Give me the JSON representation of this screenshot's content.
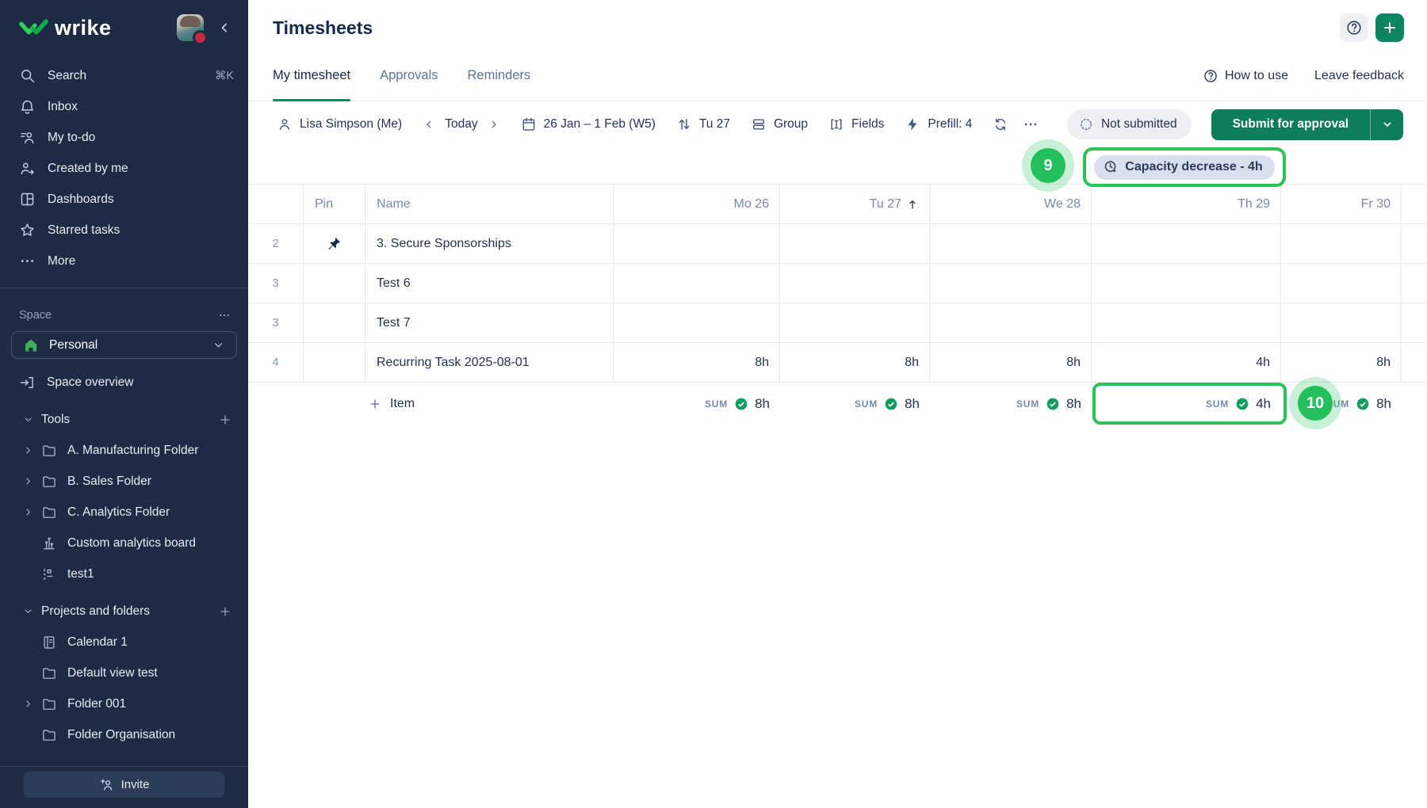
{
  "colors": {
    "brand_green": "#21bd52",
    "accent_green": "#0d7d5c",
    "annotation_green": "#2cc258",
    "sidebar_bg": "#1d2b45",
    "status_chip_bg": "#edeff5",
    "capacity_chip_bg": "#d9dfec"
  },
  "sidebar": {
    "logo_text": "wrike",
    "nav": [
      {
        "label": "Search",
        "icon": "search",
        "shortcut": "⌘K"
      },
      {
        "label": "Inbox",
        "icon": "bell"
      },
      {
        "label": "My to-do",
        "icon": "todo"
      },
      {
        "label": "Created by me",
        "icon": "created"
      },
      {
        "label": "Dashboards",
        "icon": "dashboards"
      },
      {
        "label": "Starred tasks",
        "icon": "star"
      },
      {
        "label": "More",
        "icon": "more"
      }
    ],
    "space_label": "Space",
    "space_name": "Personal",
    "space_overview": "Space overview",
    "tools": {
      "label": "Tools",
      "items": [
        {
          "label": "A. Manufacturing Folder",
          "icon": "folder",
          "chevron": true
        },
        {
          "label": "B. Sales Folder",
          "icon": "folder",
          "chevron": true
        },
        {
          "label": "C. Analytics Folder",
          "icon": "folder",
          "chevron": true
        },
        {
          "label": "Custom analytics board",
          "icon": "chart",
          "chevron": false
        },
        {
          "label": "test1",
          "icon": "workflow",
          "chevron": false
        }
      ]
    },
    "projects": {
      "label": "Projects and folders",
      "items": [
        {
          "label": "Calendar 1",
          "icon": "notebook",
          "chevron": false
        },
        {
          "label": "Default view test",
          "icon": "folder",
          "chevron": false
        },
        {
          "label": "Folder 001",
          "icon": "folder",
          "chevron": true
        },
        {
          "label": "Folder Organisation",
          "icon": "folder",
          "chevron": false
        }
      ]
    },
    "invite_label": "Invite"
  },
  "header": {
    "title": "Timesheets"
  },
  "tabs": {
    "items": [
      {
        "label": "My timesheet",
        "active": true
      },
      {
        "label": "Approvals",
        "active": false
      },
      {
        "label": "Reminders",
        "active": false
      }
    ],
    "help_link": "How to use",
    "feedback_link": "Leave feedback"
  },
  "toolbar": {
    "user": "Lisa Simpson (Me)",
    "today": "Today",
    "date_range": "26 Jan – 1 Feb (W5)",
    "sort_day": "Tu 27",
    "group": "Group",
    "fields": "Fields",
    "prefill": "Prefill: 4",
    "status": "Not submitted",
    "submit": "Submit for approval"
  },
  "annotations": {
    "step9": "9",
    "step10": "10",
    "capacity_chip": "Capacity decrease - 4h"
  },
  "table": {
    "columns": {
      "pin": "Pin",
      "name": "Name",
      "days": [
        "Mo 26",
        "Tu 27",
        "We 28",
        "Th 29",
        "Fr 30"
      ],
      "sorted_day": "Tu 27"
    },
    "rows": [
      {
        "num": "2",
        "pinned": true,
        "name": "3. Secure Sponsorships",
        "hours": [
          "",
          "",
          "",
          "",
          ""
        ]
      },
      {
        "num": "3",
        "pinned": false,
        "name": "Test 6",
        "hours": [
          "",
          "",
          "",
          "",
          ""
        ]
      },
      {
        "num": "3",
        "pinned": false,
        "name": "Test 7",
        "hours": [
          "",
          "",
          "",
          "",
          ""
        ]
      },
      {
        "num": "4",
        "pinned": false,
        "name": "Recurring Task 2025-08-01",
        "hours": [
          "8h",
          "8h",
          "8h",
          "4h",
          "8h"
        ]
      }
    ],
    "sum": {
      "add_item": "Item",
      "label": "SUM",
      "values": [
        "8h",
        "8h",
        "8h",
        "4h",
        "8h"
      ],
      "highlighted_day": "Th 29"
    }
  }
}
